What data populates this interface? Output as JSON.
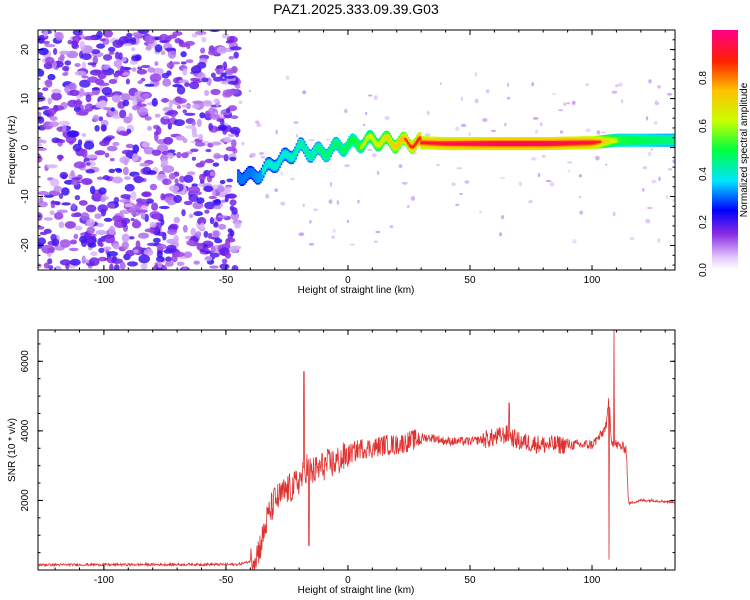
{
  "title": "PAZ1.2025.333.09.39.G03",
  "colors": {
    "snr_line": "#e03030",
    "axis": "#000000"
  },
  "chart_data": [
    {
      "type": "heatmap",
      "xlabel": "Height of straight line (km)",
      "ylabel": "Frequency (Hz)",
      "xlim": [
        -127,
        134
      ],
      "ylim": [
        -25,
        24
      ],
      "xticks": [
        -100,
        -50,
        0,
        50,
        100
      ],
      "yticks": [
        -20,
        -10,
        0,
        10,
        20
      ],
      "noise_region": {
        "x_range": [
          -127,
          -45
        ],
        "y_range": [
          -25,
          24
        ],
        "description_value": "scattered low amplitude 0.05-0.25"
      },
      "ridge": {
        "x": [
          -45,
          -40,
          -35,
          -30,
          -25,
          -20,
          -15,
          -10,
          -5,
          0,
          5,
          10,
          20,
          30,
          40,
          60,
          80,
          100,
          110,
          120,
          134
        ],
        "freq": [
          -5.5,
          -6,
          -5,
          -3,
          -2,
          0,
          -1,
          -1,
          0,
          0.5,
          1,
          1.5,
          1,
          1,
          0.8,
          0.8,
          0.8,
          1,
          1.5,
          1.5,
          1.5
        ],
        "amplitude": [
          0.3,
          0.3,
          0.35,
          0.35,
          0.35,
          0.4,
          0.4,
          0.45,
          0.45,
          0.5,
          0.55,
          0.6,
          0.75,
          0.9,
          0.95,
          1.0,
          1.0,
          0.95,
          0.55,
          0.5,
          0.45
        ]
      }
    },
    {
      "type": "colorbar",
      "label": "Normalized spectral amplitude",
      "ticks": [
        "0.0",
        "0.2",
        "0.4",
        "0.6",
        "0.8"
      ],
      "range": [
        0,
        1
      ]
    },
    {
      "type": "line",
      "xlabel": "Height of straight line (km)",
      "ylabel": "SNR (10 * v/v)",
      "xlim": [
        -127,
        134
      ],
      "ylim": [
        0,
        6900
      ],
      "xticks": [
        -100,
        -50,
        0,
        50,
        100
      ],
      "yticks": [
        2000,
        4000,
        6000
      ],
      "x": [
        -127,
        -45,
        -40,
        -37,
        -35,
        -33,
        -30,
        -28,
        -25,
        -22,
        -20,
        -18,
        -17,
        -15,
        -12,
        -10,
        -5,
        0,
        5,
        10,
        15,
        20,
        25,
        30,
        35,
        40,
        50,
        60,
        65,
        70,
        80,
        90,
        100,
        104,
        106,
        107,
        108,
        110,
        114,
        115,
        117,
        120,
        125,
        134
      ],
      "y": [
        150,
        160,
        250,
        500,
        900,
        1500,
        2000,
        2100,
        2300,
        2400,
        2600,
        2700,
        3000,
        2800,
        2900,
        3000,
        3100,
        3300,
        3500,
        3500,
        3600,
        3600,
        3700,
        3800,
        3800,
        3700,
        3700,
        3800,
        3900,
        3700,
        3600,
        3600,
        3600,
        3900,
        4200,
        5000,
        3700,
        3600,
        3500,
        1900,
        1950,
        2000,
        2000,
        1950
      ],
      "spikes": [
        {
          "x": -18,
          "y": 5700
        },
        {
          "x": -16,
          "y": 700
        },
        {
          "x": 66,
          "y": 4800
        },
        {
          "x": 107,
          "y": 300
        },
        {
          "x": 109,
          "y": 6900
        }
      ]
    }
  ]
}
